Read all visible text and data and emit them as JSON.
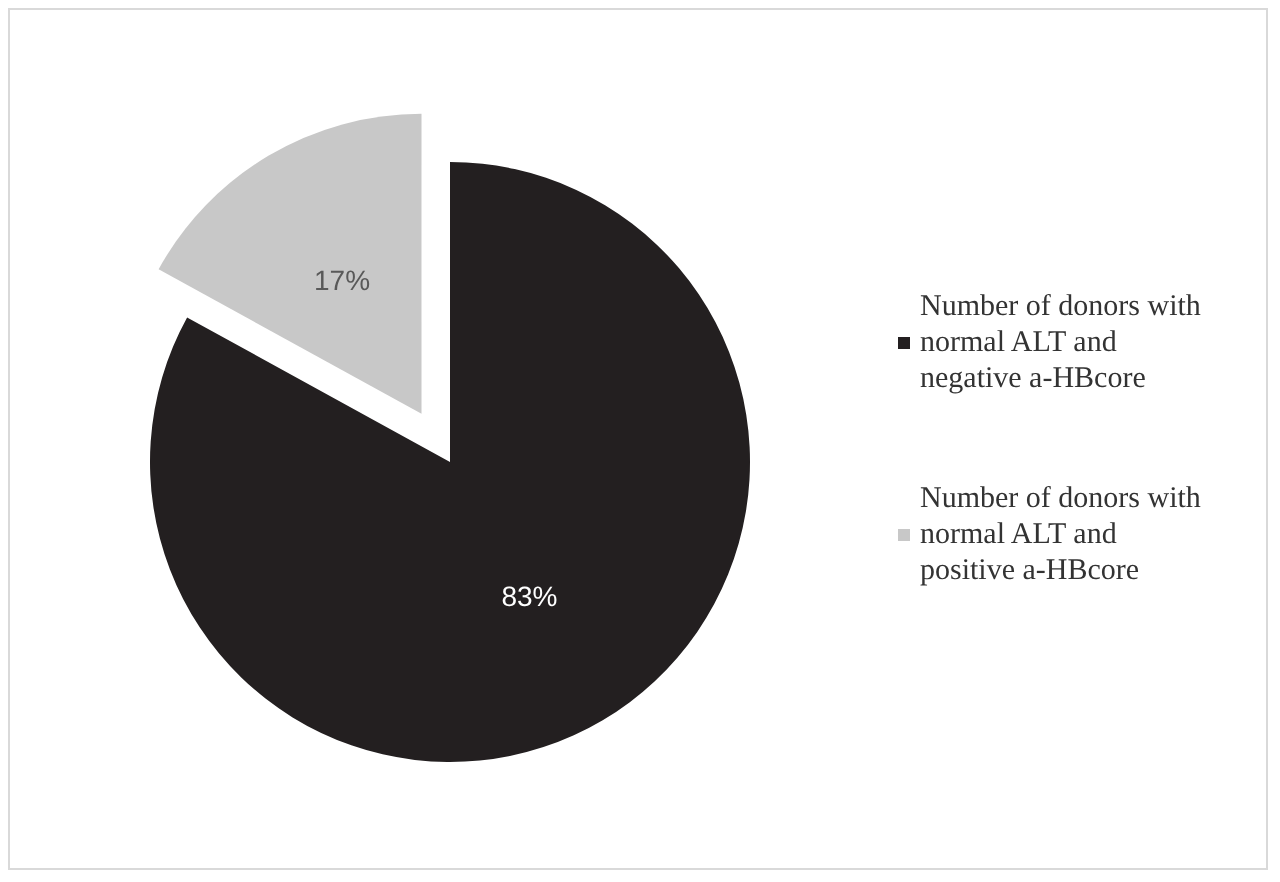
{
  "chart_data": {
    "type": "pie",
    "categories": [
      "Number of donors with normal ALT and negative a-HBcore",
      "Number of donors with normal ALT and positive a-HBcore"
    ],
    "values": [
      83,
      17
    ],
    "colors": [
      "#231f20",
      "#c8c8c8"
    ],
    "value_labels": [
      "83%",
      "17%"
    ],
    "legend": "right"
  }
}
